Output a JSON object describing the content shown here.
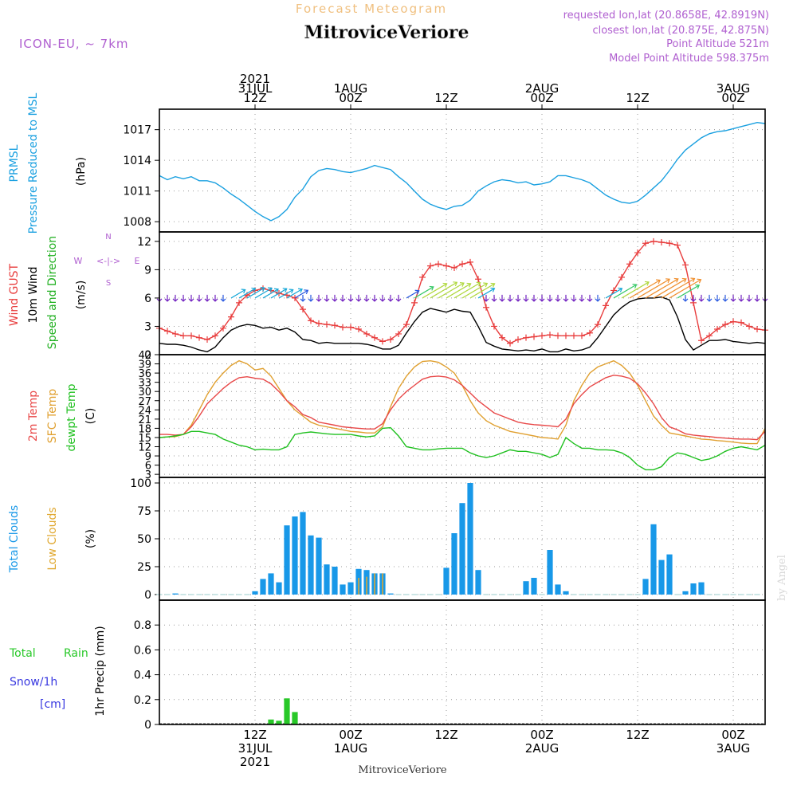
{
  "header": {
    "title": "Forecast Meteogram",
    "location": "MitroviceVeriore",
    "model": "ICON-EU,  ~ 7km",
    "requested": "requested lon,lat (20.8658E, 42.8919N)",
    "closest": "closest lon,lat (20.875E, 42.875N)",
    "point_altitude": "Point Altitude 521m",
    "model_altitude": "Model Point Altitude 598.375m",
    "credit": "by Angel",
    "footer_location": "MitroviceVeriore"
  },
  "time_axis": {
    "top_labels": [
      {
        "h": 12,
        "lines": [
          "2021",
          "31JUL",
          "12Z"
        ]
      },
      {
        "h": 24,
        "lines": [
          "1AUG",
          "00Z"
        ]
      },
      {
        "h": 36,
        "lines": [
          "12Z"
        ]
      },
      {
        "h": 48,
        "lines": [
          "2AUG",
          "00Z"
        ]
      },
      {
        "h": 60,
        "lines": [
          "12Z"
        ]
      },
      {
        "h": 72,
        "lines": [
          "3AUG",
          "00Z"
        ]
      }
    ],
    "bottom_labels": [
      {
        "h": 12,
        "lines": [
          "12Z",
          "31JUL",
          "2021"
        ]
      },
      {
        "h": 24,
        "lines": [
          "00Z",
          "1AUG"
        ]
      },
      {
        "h": 36,
        "lines": [
          "12Z"
        ]
      },
      {
        "h": 48,
        "lines": [
          "00Z",
          "2AUG"
        ]
      },
      {
        "h": 60,
        "lines": [
          "12Z"
        ]
      },
      {
        "h": 72,
        "lines": [
          "00Z",
          "3AUG"
        ]
      }
    ]
  },
  "panels": {
    "pressure": {
      "label1": "PRMSL",
      "label2": "Pressure Reduced to MSL",
      "unit": "(hPa)"
    },
    "wind": {
      "label1": "Wind GUST",
      "label2": "10m Wind",
      "label3": "Speed and Direction",
      "unit": "(m/s)",
      "compass": [
        "N",
        "W",
        "<-|->",
        "E",
        "S"
      ]
    },
    "temp": {
      "label1": "2m Temp",
      "label2": "SFC Temp",
      "label3": "dewpt Temp",
      "unit": "(C)"
    },
    "clouds": {
      "label1": "Total Clouds",
      "label2": "Low Clouds",
      "unit": "(%)"
    },
    "precip": {
      "label1": "Total",
      "label2": "Rain",
      "label3": "Snow/1h",
      "label4": "[cm]",
      "unit": "1hr Precip (mm)"
    }
  },
  "colors": {
    "pressure": "#1aa0e0",
    "gust": "#e83c3c",
    "wind": "#000000",
    "temp2m": "#e84848",
    "sfc": "#e0a030",
    "dew": "#20c020",
    "totalclouds": "#1898e8",
    "lowclouds": "#e0a830",
    "rain": "#28c828",
    "snow": "#3838e0",
    "title": "#f0c080",
    "meta": "#b060d0"
  },
  "chart_data": [
    {
      "type": "line",
      "ylim": [
        1007,
        1019
      ],
      "yticks": [
        1008,
        1011,
        1014,
        1017
      ],
      "x": [
        0,
        1,
        2,
        3,
        4,
        5,
        6,
        7,
        8,
        9,
        10,
        11,
        12,
        13,
        14,
        15,
        16,
        17,
        18,
        19,
        20,
        21,
        22,
        23,
        24,
        25,
        26,
        27,
        28,
        29,
        30,
        31,
        32,
        33,
        34,
        35,
        36,
        37,
        38,
        39,
        40,
        41,
        42,
        43,
        44,
        45,
        46,
        47,
        48,
        49,
        50,
        51,
        52,
        53,
        54,
        55,
        56,
        57,
        58,
        59,
        60,
        61,
        62,
        63,
        64,
        65,
        66,
        67,
        68,
        69,
        70,
        71,
        72,
        73,
        74,
        75,
        76
      ],
      "series": [
        {
          "name": "PRMSL",
          "values": [
            1012.5,
            1012.1,
            1012.4,
            1012.2,
            1012.4,
            1012.0,
            1012.0,
            1011.8,
            1011.3,
            1010.7,
            1010.2,
            1009.6,
            1009.0,
            1008.5,
            1008.1,
            1008.5,
            1009.2,
            1010.4,
            1011.2,
            1012.4,
            1013.0,
            1013.2,
            1013.1,
            1012.9,
            1012.8,
            1013.0,
            1013.2,
            1013.5,
            1013.3,
            1013.1,
            1012.4,
            1011.8,
            1011.0,
            1010.2,
            1009.7,
            1009.4,
            1009.2,
            1009.5,
            1009.6,
            1010.1,
            1011.0,
            1011.5,
            1011.9,
            1012.1,
            1012.0,
            1011.8,
            1011.9,
            1011.6,
            1011.7,
            1011.9,
            1012.5,
            1012.5,
            1012.3,
            1012.1,
            1011.8,
            1011.2,
            1010.6,
            1010.2,
            1009.9,
            1009.8,
            1010.0,
            1010.6,
            1011.3,
            1012.0,
            1013.0,
            1014.1,
            1015.0,
            1015.6,
            1016.2,
            1016.6,
            1016.8,
            1016.9,
            1017.1,
            1017.3,
            1017.5,
            1017.7,
            1017.6
          ]
        }
      ]
    },
    {
      "type": "line",
      "ylim": [
        0,
        13
      ],
      "yticks": [
        0,
        3,
        6,
        9,
        12
      ],
      "x": [
        0,
        1,
        2,
        3,
        4,
        5,
        6,
        7,
        8,
        9,
        10,
        11,
        12,
        13,
        14,
        15,
        16,
        17,
        18,
        19,
        20,
        21,
        22,
        23,
        24,
        25,
        26,
        27,
        28,
        29,
        30,
        31,
        32,
        33,
        34,
        35,
        36,
        37,
        38,
        39,
        40,
        41,
        42,
        43,
        44,
        45,
        46,
        47,
        48,
        49,
        50,
        51,
        52,
        53,
        54,
        55,
        56,
        57,
        58,
        59,
        60,
        61,
        62,
        63,
        64,
        65,
        66,
        67,
        68,
        69,
        70,
        71,
        72,
        73,
        74,
        75,
        76
      ],
      "series": [
        {
          "name": "Wind GUST",
          "values": [
            2.8,
            2.5,
            2.2,
            2.0,
            2.0,
            1.8,
            1.6,
            2.0,
            2.8,
            4.0,
            5.5,
            6.3,
            6.8,
            7.0,
            6.8,
            6.5,
            6.3,
            6.0,
            4.8,
            3.6,
            3.3,
            3.2,
            3.1,
            2.9,
            2.9,
            2.7,
            2.2,
            1.8,
            1.4,
            1.6,
            2.2,
            3.2,
            5.5,
            8.2,
            9.4,
            9.6,
            9.4,
            9.2,
            9.6,
            9.8,
            8.0,
            5.0,
            3.0,
            1.8,
            1.2,
            1.6,
            1.8,
            1.9,
            2.0,
            2.1,
            2.0,
            2.0,
            2.0,
            2.0,
            2.3,
            3.2,
            5.2,
            6.8,
            8.2,
            9.6,
            10.8,
            11.8,
            12.0,
            11.9,
            11.8,
            11.6,
            9.5,
            5.5,
            1.5,
            2.0,
            2.7,
            3.2,
            3.5,
            3.4,
            3.0,
            2.7,
            2.6
          ]
        },
        {
          "name": "10m Wind",
          "values": [
            1.2,
            1.1,
            1.1,
            1.0,
            0.8,
            0.5,
            0.3,
            0.8,
            1.8,
            2.6,
            3.0,
            3.2,
            3.1,
            2.8,
            2.9,
            2.6,
            2.8,
            2.4,
            1.6,
            1.5,
            1.2,
            1.3,
            1.2,
            1.2,
            1.2,
            1.2,
            1.1,
            0.9,
            0.6,
            0.6,
            1.0,
            2.3,
            3.5,
            4.5,
            4.9,
            4.7,
            4.5,
            4.8,
            4.6,
            4.5,
            3.0,
            1.3,
            0.9,
            0.6,
            0.5,
            0.4,
            0.5,
            0.4,
            0.6,
            0.3,
            0.3,
            0.6,
            0.4,
            0.5,
            0.8,
            1.8,
            3.0,
            4.2,
            5.0,
            5.6,
            5.9,
            6.0,
            6.0,
            6.1,
            5.8,
            4.0,
            1.6,
            0.5,
            1.0,
            1.5,
            1.5,
            1.6,
            1.4,
            1.3,
            1.2,
            1.3,
            1.2
          ]
        }
      ]
    },
    {
      "type": "line",
      "ylim": [
        2,
        42
      ],
      "yticks": [
        3,
        6,
        9,
        12,
        15,
        18,
        21,
        24,
        27,
        30,
        33,
        36,
        39,
        42
      ],
      "x": [
        0,
        1,
        2,
        3,
        4,
        5,
        6,
        7,
        8,
        9,
        10,
        11,
        12,
        13,
        14,
        15,
        16,
        17,
        18,
        19,
        20,
        21,
        22,
        23,
        24,
        25,
        26,
        27,
        28,
        29,
        30,
        31,
        32,
        33,
        34,
        35,
        36,
        37,
        38,
        39,
        40,
        41,
        42,
        43,
        44,
        45,
        46,
        47,
        48,
        49,
        50,
        51,
        52,
        53,
        54,
        55,
        56,
        57,
        58,
        59,
        60,
        61,
        62,
        63,
        64,
        65,
        66,
        67,
        68,
        69,
        70,
        71,
        72,
        73,
        74,
        75,
        76
      ],
      "series": [
        {
          "name": "2m Temp",
          "values": [
            16.0,
            16.0,
            15.8,
            16.0,
            18.5,
            22.0,
            26.0,
            28.5,
            31.0,
            33.0,
            34.5,
            34.8,
            34.3,
            34.0,
            32.5,
            30.0,
            27.0,
            25.0,
            22.5,
            21.5,
            20.0,
            19.5,
            19.0,
            18.5,
            18.2,
            18.0,
            17.8,
            17.8,
            19.5,
            24.0,
            27.5,
            30.0,
            32.0,
            34.0,
            34.8,
            35.0,
            34.7,
            33.8,
            32.0,
            29.5,
            27.0,
            25.0,
            23.0,
            22.0,
            21.0,
            20.0,
            19.5,
            19.2,
            19.0,
            18.8,
            18.5,
            21.0,
            26.0,
            29.0,
            31.5,
            33.0,
            34.5,
            35.3,
            35.0,
            34.3,
            32.5,
            29.5,
            26.0,
            21.5,
            18.5,
            17.5,
            16.2,
            15.8,
            15.5,
            15.3,
            15.0,
            14.8,
            14.6,
            14.5,
            14.5,
            14.3,
            17.0
          ]
        },
        {
          "name": "SFC Temp",
          "values": [
            15.0,
            15.2,
            15.3,
            16.0,
            19.0,
            24.0,
            29.0,
            33.0,
            36.0,
            38.5,
            40.0,
            39.0,
            37.0,
            37.5,
            35.0,
            31.0,
            27.0,
            24.0,
            22.0,
            20.0,
            19.0,
            18.5,
            18.0,
            17.5,
            17.0,
            16.8,
            16.5,
            16.5,
            18.5,
            25.0,
            31.0,
            35.0,
            38.0,
            39.8,
            40.0,
            39.5,
            38.0,
            36.0,
            32.0,
            27.0,
            23.0,
            20.5,
            19.0,
            18.0,
            17.0,
            16.5,
            16.0,
            15.5,
            15.0,
            14.8,
            14.5,
            19.0,
            27.0,
            32.0,
            36.0,
            38.0,
            39.0,
            40.0,
            38.5,
            36.0,
            32.0,
            27.0,
            22.0,
            19.0,
            16.5,
            16.0,
            15.5,
            15.0,
            14.5,
            14.3,
            14.0,
            13.8,
            13.5,
            13.2,
            13.0,
            13.0,
            18.0
          ]
        },
        {
          "name": "dewpt Temp",
          "values": [
            15.0,
            15.2,
            15.5,
            16.0,
            17.0,
            17.0,
            16.5,
            16.0,
            14.5,
            13.5,
            12.5,
            12.0,
            11.0,
            11.2,
            11.0,
            11.0,
            12.0,
            16.0,
            16.5,
            16.8,
            16.5,
            16.2,
            16.0,
            16.0,
            16.0,
            15.5,
            15.2,
            15.5,
            18.0,
            18.2,
            15.5,
            12.0,
            11.5,
            11.0,
            11.0,
            11.3,
            11.5,
            11.5,
            11.5,
            10.0,
            9.0,
            8.5,
            9.0,
            10.0,
            11.0,
            10.5,
            10.5,
            10.0,
            9.5,
            8.5,
            9.5,
            15.0,
            13.0,
            11.5,
            11.5,
            11.0,
            11.0,
            10.8,
            10.0,
            8.5,
            6.0,
            4.5,
            4.5,
            5.5,
            8.5,
            10.0,
            9.5,
            8.5,
            7.5,
            8.0,
            9.0,
            10.5,
            11.5,
            12.0,
            11.5,
            11.0,
            12.5
          ]
        }
      ]
    },
    {
      "type": "bar",
      "ylim": [
        -5,
        105
      ],
      "yticks": [
        0,
        25,
        50,
        75,
        100
      ],
      "x": [
        0,
        1,
        2,
        3,
        4,
        5,
        6,
        7,
        8,
        9,
        10,
        11,
        12,
        13,
        14,
        15,
        16,
        17,
        18,
        19,
        20,
        21,
        22,
        23,
        24,
        25,
        26,
        27,
        28,
        29,
        30,
        31,
        32,
        33,
        34,
        35,
        36,
        37,
        38,
        39,
        40,
        41,
        42,
        43,
        44,
        45,
        46,
        47,
        48,
        49,
        50,
        51,
        52,
        53,
        54,
        55,
        56,
        57,
        58,
        59,
        60,
        61,
        62,
        63,
        64,
        65,
        66,
        67,
        68,
        69,
        70,
        71,
        72,
        73,
        74,
        75
      ],
      "series": [
        {
          "name": "Total Clouds",
          "values": [
            0,
            0,
            1,
            0,
            0,
            0,
            0,
            0,
            0,
            0,
            0,
            0,
            3,
            14,
            19,
            11,
            62,
            70,
            74,
            53,
            51,
            27,
            25,
            9,
            11,
            23,
            22,
            19,
            19,
            1,
            0,
            0,
            0,
            0,
            0,
            0,
            24,
            55,
            82,
            100,
            22,
            0,
            0,
            0,
            0,
            0,
            12,
            15,
            0,
            40,
            9,
            3,
            0,
            0,
            0,
            0,
            0,
            0,
            0,
            0,
            0,
            14,
            63,
            31,
            36,
            0,
            3,
            10,
            11,
            0,
            0,
            0,
            0,
            0,
            0,
            0
          ]
        },
        {
          "name": "Low Clouds",
          "values": [
            0,
            0,
            0,
            0,
            0,
            0,
            0,
            0,
            0,
            0,
            0,
            0,
            0,
            0,
            0,
            0,
            0,
            0,
            0,
            0,
            0,
            0,
            0,
            0,
            0,
            15,
            16,
            19,
            19,
            0,
            0,
            0,
            0,
            0,
            0,
            0,
            0,
            0,
            0,
            0,
            0,
            0,
            0,
            0,
            0,
            0,
            0,
            0,
            0,
            0,
            0,
            0,
            0,
            0,
            0,
            0,
            0,
            0,
            0,
            0,
            0,
            0,
            0,
            0,
            0,
            0,
            0,
            0,
            0,
            0,
            0,
            0,
            0,
            0,
            0,
            0
          ]
        }
      ]
    },
    {
      "type": "bar",
      "ylim": [
        0,
        1.0
      ],
      "yticks": [
        0,
        0.2,
        0.4,
        0.6,
        0.8
      ],
      "x": [
        14,
        15,
        16,
        17
      ],
      "series": [
        {
          "name": "Total Rain",
          "values": [
            0.04,
            0.03,
            0.21,
            0.1
          ]
        },
        {
          "name": "Snow/1h",
          "values": [
            0,
            0,
            0,
            0
          ]
        }
      ]
    }
  ]
}
